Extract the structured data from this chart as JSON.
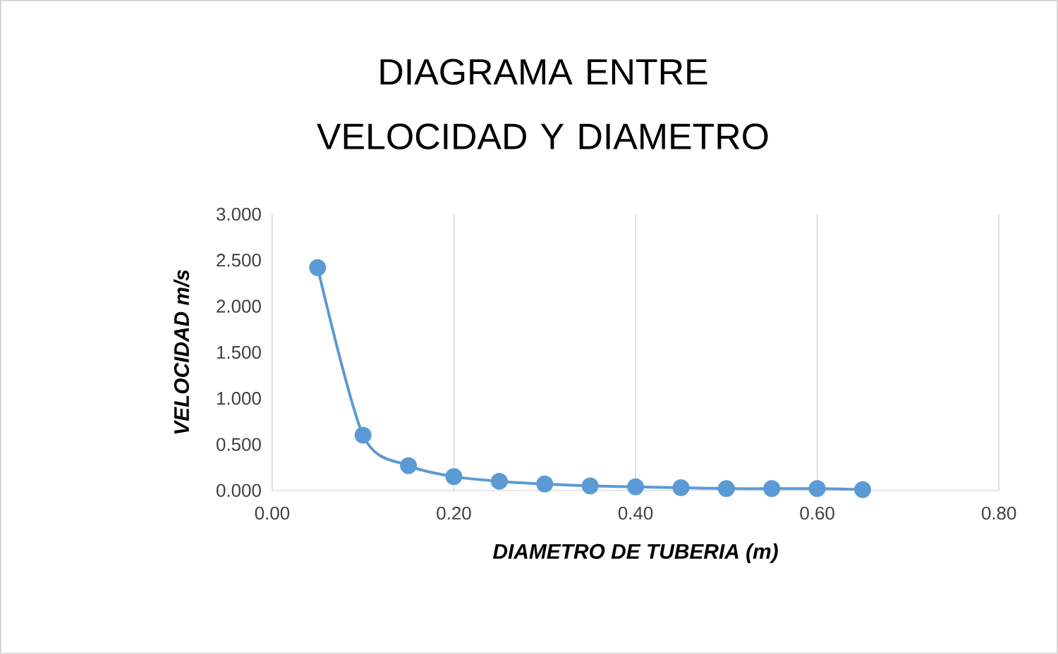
{
  "chart_data": {
    "type": "line",
    "title": "DIAGRAMA ENTRE VELOCIDAD Y DIAMETRO",
    "xlabel": "DIAMETRO DE TUBERIA (m)",
    "ylabel": "VELOCIDAD m/s",
    "x": [
      0.05,
      0.1,
      0.15,
      0.2,
      0.25,
      0.3,
      0.35,
      0.4,
      0.45,
      0.5,
      0.55,
      0.6,
      0.65
    ],
    "series": [
      {
        "color": "#5b9bd5",
        "values": [
          2.42,
          0.6,
          0.27,
          0.15,
          0.1,
          0.07,
          0.05,
          0.04,
          0.03,
          0.02,
          0.02,
          0.02,
          0.01
        ]
      }
    ],
    "xlim": [
      0,
      0.8
    ],
    "ylim": [
      0,
      3
    ],
    "xticks": [
      {
        "value": 0,
        "label": "0.00"
      },
      {
        "value": 0.2,
        "label": "0.20"
      },
      {
        "value": 0.4,
        "label": "0.40"
      },
      {
        "value": 0.6,
        "label": "0.60"
      },
      {
        "value": 0.8,
        "label": "0.80"
      }
    ],
    "yticks": [
      {
        "value": 0,
        "label": "0.000"
      },
      {
        "value": 0.5,
        "label": "0.500"
      },
      {
        "value": 1,
        "label": "1.000"
      },
      {
        "value": 1.5,
        "label": "1.500"
      },
      {
        "value": 2,
        "label": "2.000"
      },
      {
        "value": 2.5,
        "label": "2.500"
      },
      {
        "value": 3,
        "label": "3.000"
      }
    ],
    "grid": "x",
    "marker": "circle",
    "line_style": "solid"
  }
}
